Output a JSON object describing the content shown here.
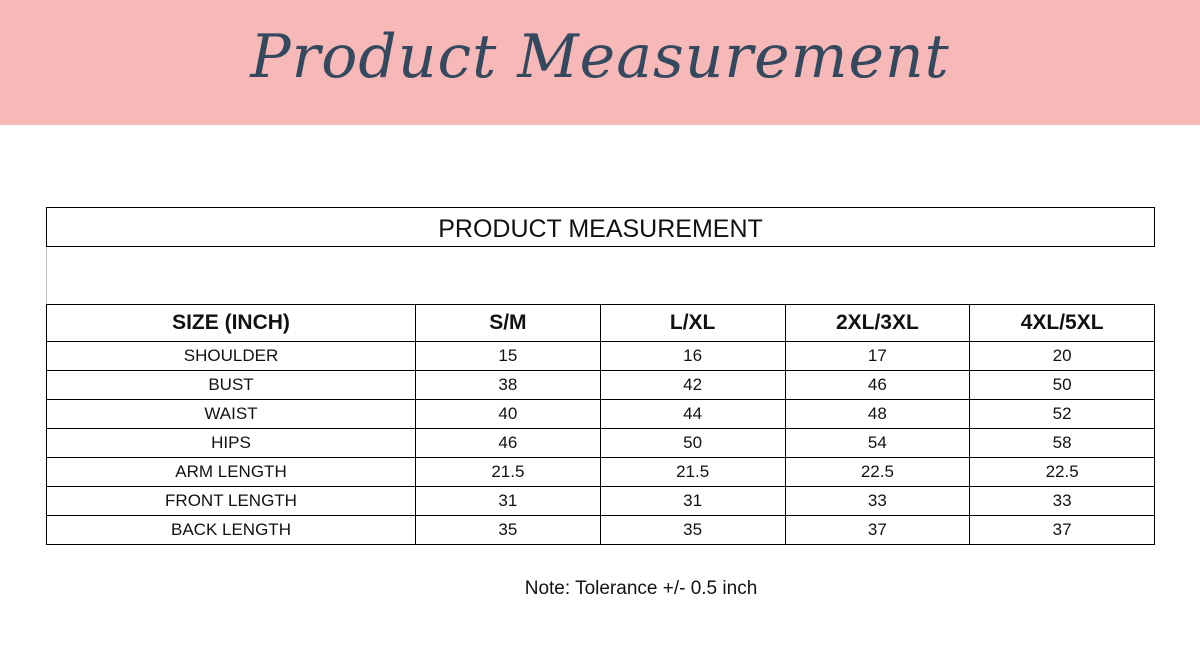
{
  "banner": {
    "title": "Product Measurement"
  },
  "table": {
    "title": "PRODUCT MEASUREMENT",
    "header": [
      "SIZE (INCH)",
      "S/M",
      "L/XL",
      "2XL/3XL",
      "4XL/5XL"
    ],
    "rows": [
      [
        "SHOULDER",
        15,
        16,
        17,
        20
      ],
      [
        "BUST",
        38,
        42,
        46,
        50
      ],
      [
        "WAIST",
        40,
        44,
        48,
        52
      ],
      [
        "HIPS",
        46,
        50,
        54,
        58
      ],
      [
        "ARM LENGTH",
        21.5,
        21.5,
        22.5,
        22.5
      ],
      [
        "FRONT LENGTH",
        31,
        31,
        33,
        33
      ],
      [
        "BACK LENGTH",
        35,
        35,
        37,
        37
      ]
    ]
  },
  "note": "Note: Tolerance +/- 0.5 inch"
}
